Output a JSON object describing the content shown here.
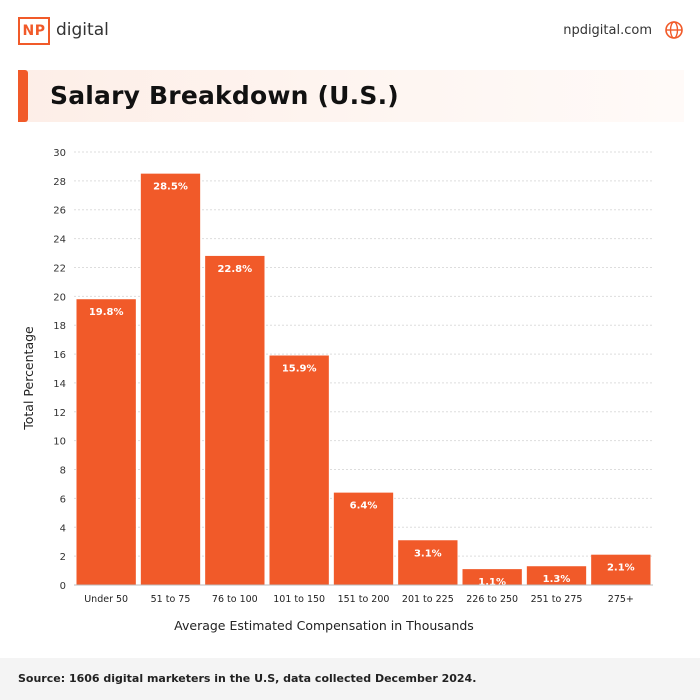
{
  "header": {
    "logo_mark": "NP",
    "logo_text": "digital",
    "site_url": "npdigital.com",
    "icons": [
      "globe-icon"
    ]
  },
  "title": "Salary Breakdown (U.S.)",
  "footer": {
    "source": "Source: 1606 digital marketers in the U.S, data collected December 2024."
  },
  "colors": {
    "accent": "#f15a29",
    "bar": "#f15a29",
    "grid": "#dddddd"
  },
  "chart_data": {
    "type": "bar",
    "categories": [
      "Under 50",
      "51 to 75",
      "76 to 100",
      "101 to 150",
      "151 to 200",
      "201 to 225",
      "226 to 250",
      "251 to 275",
      "275+"
    ],
    "values": [
      19.8,
      28.5,
      22.8,
      15.9,
      6.4,
      3.1,
      1.1,
      1.3,
      2.1
    ],
    "data_labels": [
      "19.8%",
      "28.5%",
      "22.8%",
      "15.9%",
      "6.4%",
      "3.1%",
      "1.1%",
      "1.3%",
      "2.1%"
    ],
    "xlabel": "Average Estimated Compensation in Thousands",
    "ylabel": "Total Percentage",
    "ylim": [
      0,
      30
    ],
    "yticks": [
      0,
      2,
      4,
      6,
      8,
      10,
      12,
      14,
      16,
      18,
      20,
      22,
      24,
      26,
      28,
      30
    ],
    "grid": true,
    "legend": "none"
  }
}
